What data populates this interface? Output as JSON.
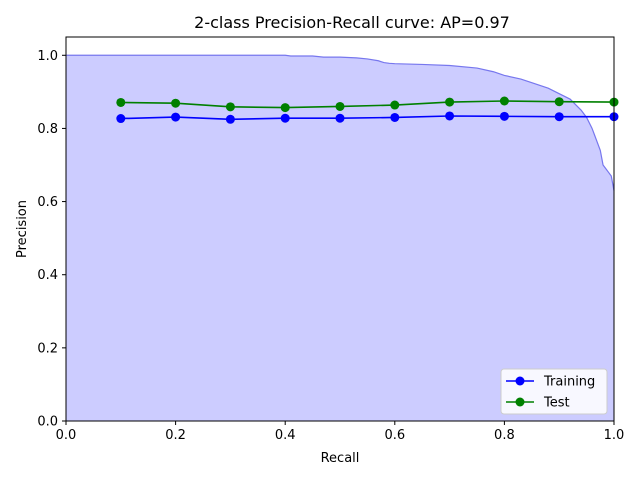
{
  "chart_data": {
    "type": "line",
    "title": "2-class Precision-Recall curve: AP=0.97",
    "xlabel": "Recall",
    "ylabel": "Precision",
    "xlim": [
      0.0,
      1.0
    ],
    "ylim": [
      0.0,
      1.05
    ],
    "xticks": [
      "0.0",
      "0.2",
      "0.4",
      "0.6",
      "0.8",
      "1.0"
    ],
    "yticks": [
      "0.0",
      "0.2",
      "0.4",
      "0.6",
      "0.8",
      "1.0"
    ],
    "grid": false,
    "legend_position": "lower-right",
    "pr_area": {
      "color": "#ccccff",
      "edge_color": "#7777ee",
      "recall": [
        0.0,
        0.4,
        0.41,
        0.45,
        0.47,
        0.5,
        0.53,
        0.55,
        0.57,
        0.58,
        0.59,
        0.6,
        0.65,
        0.7,
        0.75,
        0.78,
        0.8,
        0.83,
        0.85,
        0.88,
        0.9,
        0.92,
        0.93,
        0.94,
        0.95,
        0.96,
        0.965,
        0.97,
        0.975,
        0.98,
        0.985,
        0.99,
        0.995,
        1.0
      ],
      "precision": [
        1.0,
        1.0,
        0.998,
        0.998,
        0.995,
        0.995,
        0.993,
        0.99,
        0.985,
        0.98,
        0.978,
        0.977,
        0.975,
        0.972,
        0.965,
        0.955,
        0.945,
        0.935,
        0.925,
        0.91,
        0.895,
        0.88,
        0.865,
        0.85,
        0.83,
        0.8,
        0.78,
        0.76,
        0.74,
        0.7,
        0.69,
        0.68,
        0.67,
        0.63
      ]
    },
    "series": [
      {
        "name": "Training",
        "color": "#0000ff",
        "x": [
          0.1,
          0.2,
          0.3,
          0.4,
          0.5,
          0.6,
          0.7,
          0.8,
          0.9,
          1.0
        ],
        "values": [
          0.827,
          0.831,
          0.825,
          0.828,
          0.828,
          0.83,
          0.834,
          0.833,
          0.832,
          0.832
        ]
      },
      {
        "name": "Test",
        "color": "#008000",
        "x": [
          0.1,
          0.2,
          0.3,
          0.4,
          0.5,
          0.6,
          0.7,
          0.8,
          0.9,
          1.0
        ],
        "values": [
          0.871,
          0.869,
          0.859,
          0.857,
          0.86,
          0.864,
          0.872,
          0.875,
          0.873,
          0.872
        ]
      }
    ]
  }
}
